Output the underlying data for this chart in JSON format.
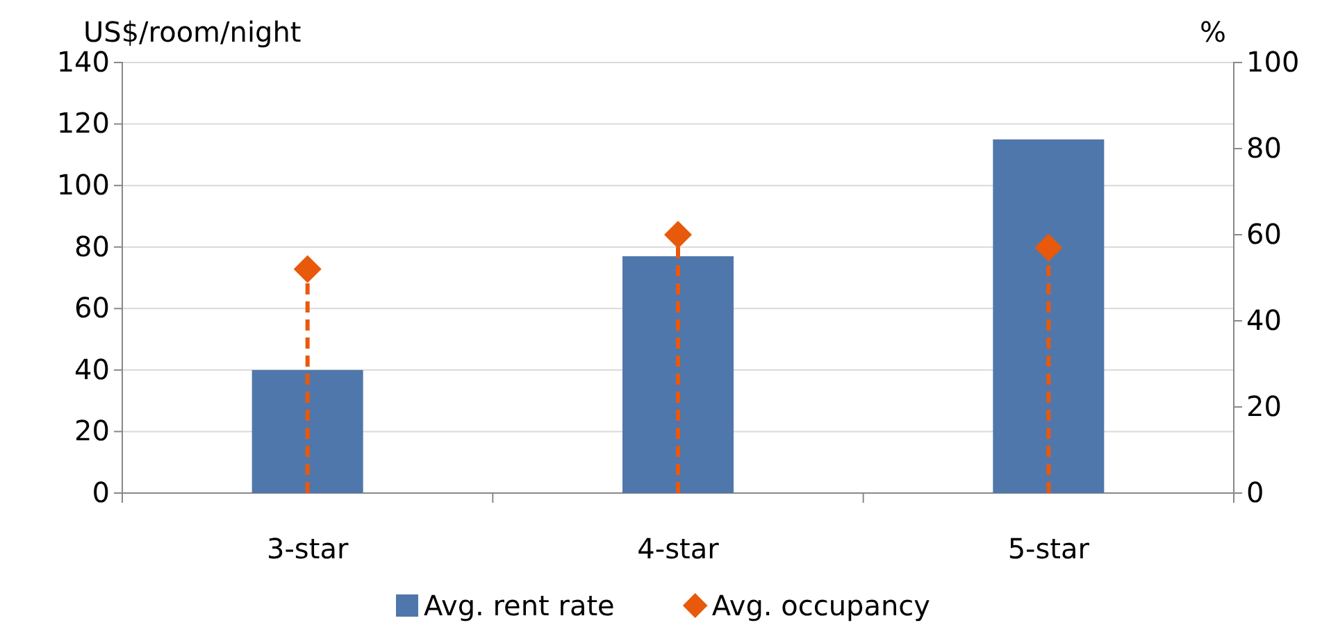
{
  "chart_data": {
    "type": "bar",
    "categories": [
      "3-star",
      "4-star",
      "5-star"
    ],
    "ylabel": "US$/room/night",
    "y2label": "%",
    "ylim": [
      0,
      140
    ],
    "yticks": [
      0,
      20,
      40,
      60,
      80,
      100,
      120,
      140
    ],
    "y2lim": [
      0,
      100
    ],
    "y2ticks": [
      0,
      20,
      40,
      60,
      80,
      100
    ],
    "grid": "y",
    "legend": "bottom",
    "series": [
      {
        "name": "Avg. rent rate",
        "color": "#4f77ab",
        "values": [
          40,
          77,
          115
        ]
      },
      {
        "name": "Avg. occupancy",
        "type": "lollipop",
        "axis": "y2",
        "color": "#e8590c",
        "marker": "diamond",
        "line_style": "dashed",
        "values": [
          52,
          60,
          57
        ]
      }
    ]
  }
}
